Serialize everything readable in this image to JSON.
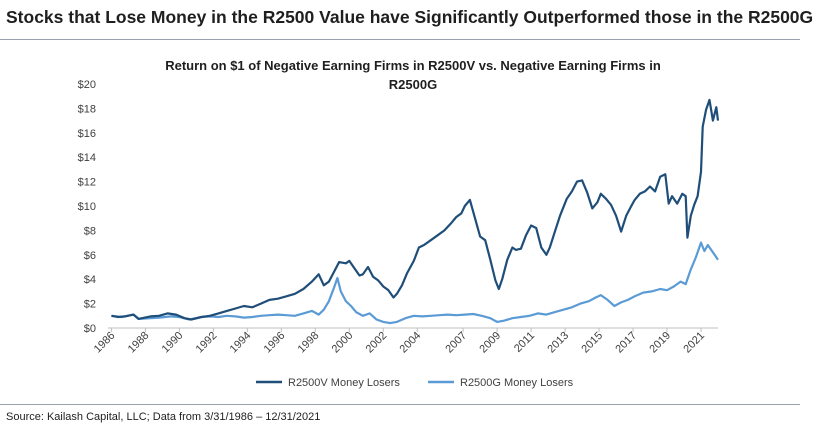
{
  "page": {
    "headline": "Stocks that Lose Money in the R2500 Value have Significantly Outperformed those in the R2500G",
    "source": "Source: Kailash Capital, LLC; Data from 3/31/1986 – 12/31/2021"
  },
  "colors": {
    "value": "#1f4e79",
    "growth": "#5b9bd5",
    "text": "#404040",
    "axis": "#bfbfbf"
  },
  "chart_data": {
    "type": "line",
    "title_line1": "Return on $1 of Negative Earning Firms in R2500V vs. Negative Earning Firms in",
    "title_line2": "R2500G",
    "xlabel": "",
    "ylabel": "",
    "x_range": [
      1986.0,
      2021.9
    ],
    "ylim": [
      0,
      20
    ],
    "y_ticks": [
      0,
      2,
      4,
      6,
      8,
      10,
      12,
      14,
      16,
      18,
      20
    ],
    "y_tick_labels": [
      "$0",
      "$2",
      "$4",
      "$6",
      "$8",
      "$10",
      "$12",
      "$14",
      "$16",
      "$18",
      "$20"
    ],
    "x_ticks": [
      1986,
      1988,
      1990,
      1992,
      1994,
      1996,
      1998,
      2000,
      2002,
      2004,
      2007,
      2009,
      2011,
      2013,
      2015,
      2017,
      2019,
      2021
    ],
    "x_tick_positions": [
      1986.2,
      1988.2,
      1990.2,
      1992.2,
      1994.2,
      1996.2,
      1998.2,
      2000.2,
      2002.2,
      2004.2,
      2006.9,
      2008.9,
      2010.9,
      2012.9,
      2014.9,
      2016.9,
      2018.9,
      2020.9
    ],
    "legend_position": "bottom",
    "grid": false,
    "series": [
      {
        "name": "R2500V Money Losers",
        "color": "#1f4e79",
        "x": [
          1986.2,
          1986.6,
          1987.0,
          1987.5,
          1987.8,
          1988.0,
          1988.5,
          1989.0,
          1989.5,
          1990.0,
          1990.5,
          1990.9,
          1991.5,
          1992.0,
          1992.5,
          1993.0,
          1993.5,
          1994.0,
          1994.5,
          1995.0,
          1995.5,
          1996.0,
          1996.5,
          1997.0,
          1997.5,
          1998.0,
          1998.4,
          1998.7,
          1999.0,
          1999.3,
          1999.6,
          2000.0,
          2000.2,
          2000.5,
          2000.8,
          2001.0,
          2001.3,
          2001.6,
          2001.9,
          2002.2,
          2002.5,
          2002.8,
          2003.0,
          2003.3,
          2003.6,
          2004.0,
          2004.3,
          2004.6,
          2005.0,
          2005.4,
          2005.8,
          2006.2,
          2006.5,
          2006.8,
          2007.0,
          2007.3,
          2007.6,
          2007.9,
          2008.2,
          2008.5,
          2008.8,
          2009.0,
          2009.2,
          2009.5,
          2009.8,
          2010.0,
          2010.3,
          2010.6,
          2010.9,
          2011.2,
          2011.5,
          2011.8,
          2012.0,
          2012.3,
          2012.6,
          2013.0,
          2013.3,
          2013.6,
          2013.9,
          2014.2,
          2014.5,
          2014.8,
          2015.0,
          2015.3,
          2015.6,
          2015.9,
          2016.2,
          2016.5,
          2016.8,
          2017.0,
          2017.3,
          2017.6,
          2017.9,
          2018.2,
          2018.5,
          2018.8,
          2019.0,
          2019.2,
          2019.5,
          2019.8,
          2020.0,
          2020.1,
          2020.3,
          2020.5,
          2020.7,
          2020.9,
          2021.0,
          2021.2,
          2021.4,
          2021.6,
          2021.8,
          2021.9
        ],
        "values": [
          1.0,
          0.9,
          0.95,
          1.1,
          0.75,
          0.8,
          0.95,
          1.0,
          1.2,
          1.1,
          0.8,
          0.7,
          0.9,
          1.0,
          1.2,
          1.4,
          1.6,
          1.8,
          1.7,
          2.0,
          2.3,
          2.4,
          2.6,
          2.8,
          3.2,
          3.8,
          4.4,
          3.5,
          3.8,
          4.6,
          5.4,
          5.3,
          5.5,
          4.9,
          4.3,
          4.4,
          5.0,
          4.2,
          3.9,
          3.4,
          3.1,
          2.5,
          2.8,
          3.5,
          4.5,
          5.5,
          6.6,
          6.8,
          7.2,
          7.6,
          8.0,
          8.6,
          9.1,
          9.4,
          10.0,
          10.5,
          9.0,
          7.5,
          7.2,
          5.6,
          3.9,
          3.2,
          4.0,
          5.6,
          6.6,
          6.4,
          6.5,
          7.6,
          8.4,
          8.2,
          6.6,
          6.0,
          6.6,
          7.9,
          9.2,
          10.6,
          11.2,
          12.0,
          12.1,
          11.1,
          9.8,
          10.3,
          11.0,
          10.6,
          10.1,
          9.2,
          7.9,
          9.2,
          10.0,
          10.5,
          11.0,
          11.2,
          11.6,
          11.2,
          12.4,
          12.6,
          10.2,
          10.8,
          10.2,
          11.0,
          10.8,
          7.4,
          9.2,
          10.1,
          10.8,
          12.8,
          16.5,
          17.9,
          18.7,
          17.0,
          18.1,
          17.0
        ]
      },
      {
        "name": "R2500G Money Losers",
        "color": "#5b9bd5",
        "x": [
          1986.2,
          1986.8,
          1987.5,
          1987.8,
          1988.5,
          1989.0,
          1989.7,
          1990.2,
          1990.8,
          1991.5,
          1992.0,
          1992.5,
          1993.0,
          1993.5,
          1994.0,
          1994.5,
          1995.0,
          1995.5,
          1996.0,
          1996.5,
          1997.0,
          1997.5,
          1998.0,
          1998.4,
          1998.7,
          1999.0,
          1999.3,
          1999.5,
          1999.7,
          2000.0,
          2000.3,
          2000.6,
          2001.0,
          2001.4,
          2001.8,
          2002.2,
          2002.6,
          2003.0,
          2003.5,
          2004.0,
          2004.5,
          2005.0,
          2005.5,
          2006.0,
          2006.5,
          2007.0,
          2007.5,
          2008.0,
          2008.5,
          2008.9,
          2009.3,
          2009.8,
          2010.3,
          2010.8,
          2011.3,
          2011.8,
          2012.3,
          2012.8,
          2013.3,
          2013.8,
          2014.3,
          2014.7,
          2015.0,
          2015.4,
          2015.8,
          2016.2,
          2016.6,
          2017.0,
          2017.5,
          2018.0,
          2018.5,
          2018.9,
          2019.3,
          2019.7,
          2020.0,
          2020.3,
          2020.6,
          2020.9,
          2021.1,
          2021.3,
          2021.5,
          2021.7,
          2021.9
        ],
        "values": [
          1.0,
          0.9,
          1.1,
          0.75,
          0.8,
          0.85,
          0.95,
          0.9,
          0.7,
          0.9,
          0.95,
          0.9,
          1.0,
          0.95,
          0.85,
          0.9,
          1.0,
          1.05,
          1.1,
          1.05,
          1.0,
          1.2,
          1.4,
          1.1,
          1.5,
          2.2,
          3.3,
          4.1,
          3.0,
          2.2,
          1.8,
          1.3,
          1.0,
          1.2,
          0.7,
          0.5,
          0.4,
          0.5,
          0.8,
          1.0,
          0.95,
          1.0,
          1.05,
          1.1,
          1.05,
          1.1,
          1.15,
          1.0,
          0.8,
          0.5,
          0.6,
          0.8,
          0.9,
          1.0,
          1.2,
          1.1,
          1.3,
          1.5,
          1.7,
          2.0,
          2.2,
          2.5,
          2.7,
          2.3,
          1.8,
          2.1,
          2.3,
          2.6,
          2.9,
          3.0,
          3.2,
          3.1,
          3.4,
          3.8,
          3.6,
          4.8,
          5.8,
          7.0,
          6.3,
          6.8,
          6.4,
          6.0,
          5.6
        ]
      }
    ]
  }
}
